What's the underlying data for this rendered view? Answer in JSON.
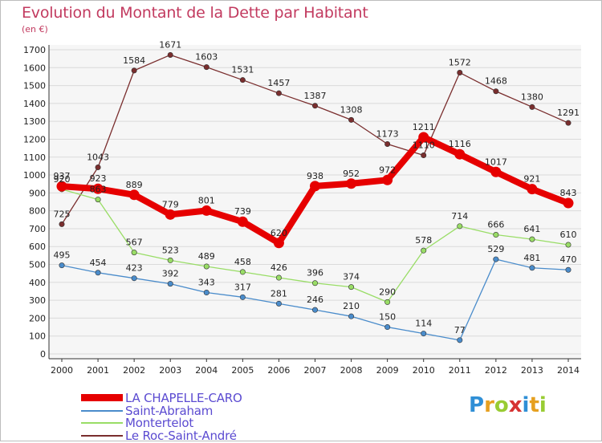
{
  "chart_data": {
    "type": "line",
    "title": "Evolution du Montant de la Dette par Habitant",
    "subtitle": "(en €)",
    "x": [
      "2000",
      "2001",
      "2002",
      "2003",
      "2004",
      "2005",
      "2006",
      "2007",
      "2008",
      "2009",
      "2010",
      "2011",
      "2012",
      "2013",
      "2014"
    ],
    "ylim": [
      0,
      1700
    ],
    "yticks": [
      0,
      100,
      200,
      300,
      400,
      500,
      600,
      700,
      800,
      900,
      1000,
      1100,
      1200,
      1300,
      1400,
      1500,
      1600,
      1700
    ],
    "grid": true,
    "legend_position": "bottom-left",
    "series": [
      {
        "name": "LA CHAPELLE-CARO",
        "color": "#e60000",
        "values": [
          937,
          923,
          889,
          779,
          801,
          739,
          620,
          938,
          952,
          972,
          1211,
          1116,
          1017,
          921,
          843
        ]
      },
      {
        "name": "Saint-Abraham",
        "color": "#4a8ccb",
        "values": [
          495,
          454,
          423,
          392,
          343,
          317,
          281,
          246,
          210,
          150,
          114,
          77,
          529,
          481,
          470
        ]
      },
      {
        "name": "Montertelot",
        "color": "#99dd66",
        "values": [
          920,
          863,
          567,
          523,
          489,
          458,
          426,
          396,
          374,
          290,
          578,
          714,
          666,
          641,
          610
        ]
      },
      {
        "name": "Le Roc-Saint-André",
        "color": "#7a2e2e",
        "values": [
          725,
          1043,
          1584,
          1671,
          1603,
          1531,
          1457,
          1387,
          1308,
          1173,
          1110,
          1572,
          1468,
          1380,
          1291
        ]
      }
    ]
  },
  "brand": {
    "letters": [
      "P",
      "r",
      "o",
      "x",
      "i",
      "t",
      "i"
    ],
    "colors": [
      "#2f8fd6",
      "#e6a020",
      "#99cc33",
      "#d63333",
      "#2f8fd6",
      "#e6a020",
      "#99cc33"
    ]
  }
}
